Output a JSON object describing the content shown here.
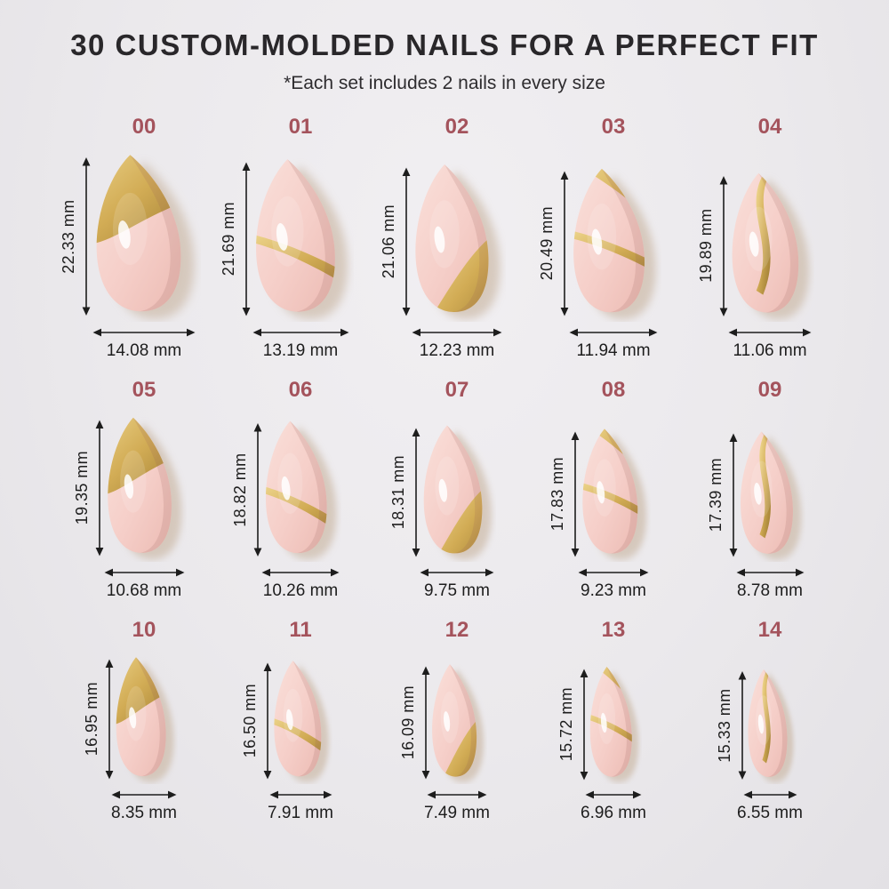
{
  "page": {
    "title": "30 CUSTOM-MOLDED NAILS FOR A PERFECT FIT",
    "subtitle": "*Each set includes 2 nails in every size",
    "unit": "mm"
  },
  "colors": {
    "background": "#EBE9EC",
    "title_text": "#29272A",
    "size_number": "#A4535C",
    "measure_text": "#1D1D1D",
    "arrow": "#1D1D1D",
    "nail_pink_light": "#FAE0DA",
    "nail_pink": "#F5CEC8",
    "nail_pink_dark": "#ECBBB3",
    "gold_light": "#F2DC96",
    "gold": "#D2AC55",
    "gold_dark": "#97762E",
    "shadow": "#CDBCAA"
  },
  "nails": [
    {
      "id": "00",
      "height_mm": 22.33,
      "width_mm": 14.08,
      "height_label": "22.33 mm",
      "width_label": "14.08 mm",
      "design": "gold-tip"
    },
    {
      "id": "01",
      "height_mm": 21.69,
      "width_mm": 13.19,
      "height_label": "21.69 mm",
      "width_label": "13.19 mm",
      "design": "gold-wave"
    },
    {
      "id": "02",
      "height_mm": 21.06,
      "width_mm": 12.23,
      "height_label": "21.06 mm",
      "width_label": "12.23 mm",
      "design": "gold-corner"
    },
    {
      "id": "03",
      "height_mm": 20.49,
      "width_mm": 11.94,
      "height_label": "20.49 mm",
      "width_label": "11.94 mm",
      "design": "gold-double-stripe"
    },
    {
      "id": "04",
      "height_mm": 19.89,
      "width_mm": 11.06,
      "height_label": "19.89 mm",
      "width_label": "11.06 mm",
      "design": "gold-s-wave"
    },
    {
      "id": "05",
      "height_mm": 19.35,
      "width_mm": 10.68,
      "height_label": "19.35 mm",
      "width_label": "10.68 mm",
      "design": "gold-tip"
    },
    {
      "id": "06",
      "height_mm": 18.82,
      "width_mm": 10.26,
      "height_label": "18.82 mm",
      "width_label": "10.26 mm",
      "design": "gold-wave"
    },
    {
      "id": "07",
      "height_mm": 18.31,
      "width_mm": 9.75,
      "height_label": "18.31 mm",
      "width_label": "9.75 mm",
      "design": "gold-corner"
    },
    {
      "id": "08",
      "height_mm": 17.83,
      "width_mm": 9.23,
      "height_label": "17.83 mm",
      "width_label": "9.23 mm",
      "design": "gold-double-stripe"
    },
    {
      "id": "09",
      "height_mm": 17.39,
      "width_mm": 8.78,
      "height_label": "17.39 mm",
      "width_label": "8.78 mm",
      "design": "gold-s-wave"
    },
    {
      "id": "10",
      "height_mm": 16.95,
      "width_mm": 8.35,
      "height_label": "16.95 mm",
      "width_label": "8.35 mm",
      "design": "gold-tip"
    },
    {
      "id": "11",
      "height_mm": 16.5,
      "width_mm": 7.91,
      "height_label": "16.50 mm",
      "width_label": "7.91 mm",
      "design": "gold-wave"
    },
    {
      "id": "12",
      "height_mm": 16.09,
      "width_mm": 7.49,
      "height_label": "16.09 mm",
      "width_label": "7.49 mm",
      "design": "gold-corner"
    },
    {
      "id": "13",
      "height_mm": 15.72,
      "width_mm": 6.96,
      "height_label": "15.72 mm",
      "width_label": "6.96 mm",
      "design": "gold-double-stripe"
    },
    {
      "id": "14",
      "height_mm": 15.33,
      "width_mm": 6.55,
      "height_label": "15.33 mm",
      "width_label": "6.55 mm",
      "design": "gold-s-wave"
    }
  ],
  "layout": {
    "rows": 3,
    "columns": 5
  }
}
